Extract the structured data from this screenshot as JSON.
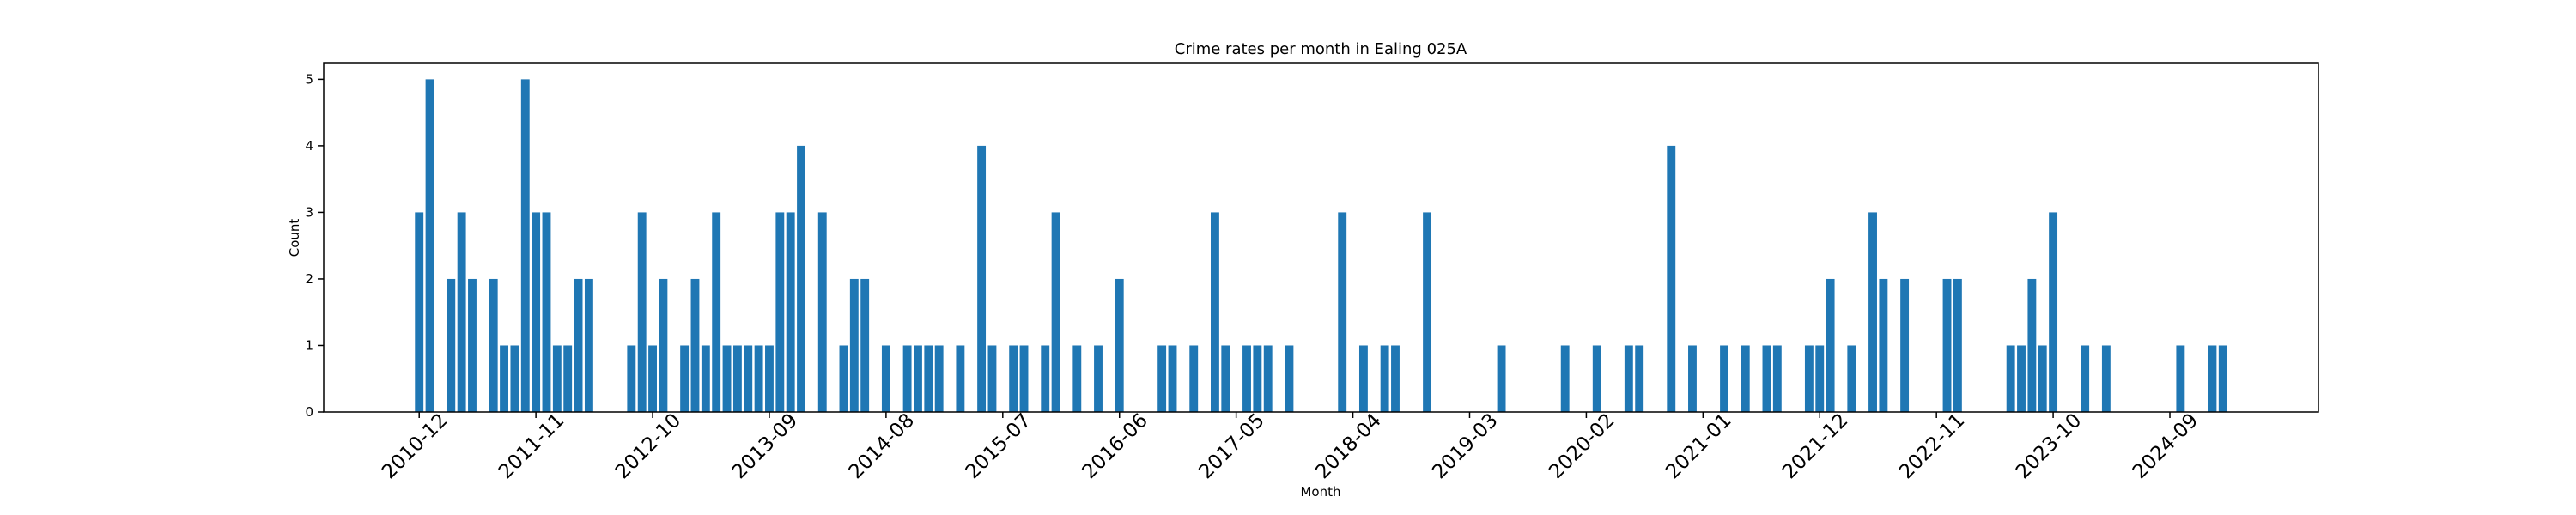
{
  "chart_data": {
    "type": "bar",
    "title": "Crime rates per month in Ealing 025A",
    "x_label": "Month",
    "y_label": "Count",
    "color": "#1f77b4",
    "x": [
      "2010-12",
      "2011-01",
      "2011-03",
      "2011-04",
      "2011-05",
      "2011-07",
      "2011-08",
      "2011-09",
      "2011-10",
      "2011-11",
      "2011-12",
      "2012-01",
      "2012-02",
      "2012-03",
      "2012-04",
      "2012-08",
      "2012-09",
      "2012-10",
      "2012-11",
      "2013-01",
      "2013-02",
      "2013-03",
      "2013-04",
      "2013-05",
      "2013-06",
      "2013-07",
      "2013-08",
      "2013-09",
      "2013-10",
      "2013-11",
      "2013-12",
      "2014-02",
      "2014-04",
      "2014-05",
      "2014-06",
      "2014-08",
      "2014-10",
      "2014-11",
      "2014-12",
      "2015-01",
      "2015-03",
      "2015-05",
      "2015-06",
      "2015-08",
      "2015-09",
      "2015-11",
      "2015-12",
      "2016-02",
      "2016-04",
      "2016-06",
      "2016-10",
      "2016-11",
      "2017-01",
      "2017-03",
      "2017-04",
      "2017-06",
      "2017-07",
      "2017-08",
      "2017-10",
      "2018-03",
      "2018-05",
      "2018-07",
      "2018-08",
      "2018-11",
      "2019-06",
      "2019-12",
      "2020-03",
      "2020-06",
      "2020-07",
      "2020-10",
      "2020-12",
      "2021-03",
      "2021-05",
      "2021-07",
      "2021-08",
      "2021-11",
      "2021-12",
      "2022-01",
      "2022-03",
      "2022-05",
      "2022-06",
      "2022-08",
      "2022-12",
      "2023-01",
      "2023-06",
      "2023-07",
      "2023-08",
      "2023-09",
      "2023-10",
      "2024-01",
      "2024-03",
      "2024-10",
      "2025-01",
      "2025-02"
    ],
    "values": [
      3,
      5,
      2,
      3,
      2,
      2,
      1,
      1,
      5,
      3,
      3,
      1,
      1,
      2,
      2,
      1,
      3,
      1,
      2,
      1,
      2,
      1,
      3,
      1,
      1,
      1,
      1,
      1,
      3,
      3,
      4,
      3,
      1,
      2,
      2,
      1,
      1,
      1,
      1,
      1,
      1,
      4,
      1,
      1,
      1,
      1,
      3,
      1,
      1,
      2,
      1,
      1,
      1,
      3,
      1,
      1,
      1,
      1,
      1,
      3,
      1,
      1,
      1,
      3,
      1,
      1,
      1,
      1,
      1,
      4,
      1,
      1,
      1,
      1,
      1,
      1,
      1,
      2,
      1,
      3,
      2,
      2,
      2,
      2,
      1,
      1,
      2,
      1,
      3,
      1,
      1,
      1,
      1,
      1
    ],
    "xlim": [
      "2010-03",
      "2025-11"
    ],
    "xticks": [
      "2010-12",
      "2011-11",
      "2012-10",
      "2013-09",
      "2014-08",
      "2015-07",
      "2016-06",
      "2017-05",
      "2018-04",
      "2019-03",
      "2020-02",
      "2021-01",
      "2021-12",
      "2022-11",
      "2023-10",
      "2024-09"
    ],
    "ylim": [
      0,
      5.25
    ],
    "yticks": [
      0,
      1,
      2,
      3,
      4,
      5
    ]
  }
}
